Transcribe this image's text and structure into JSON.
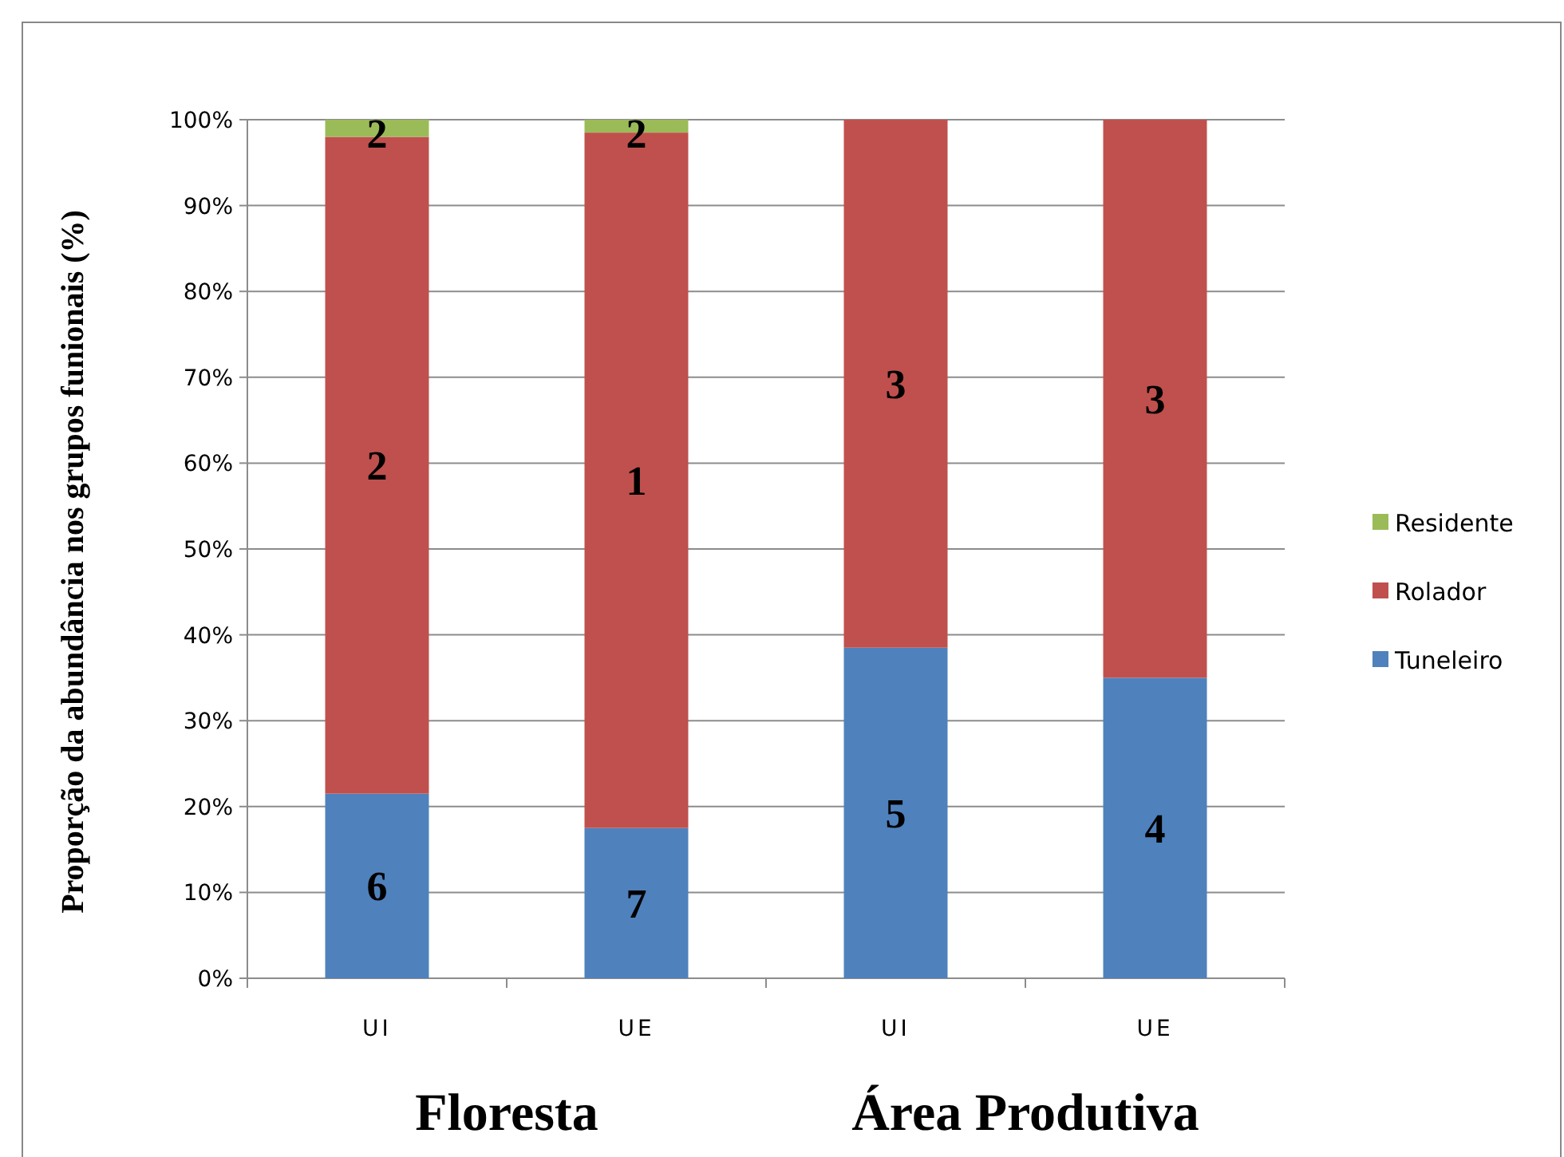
{
  "chart_data": {
    "type": "bar",
    "stacked": true,
    "ylabel": "Proporção da abundância nos grupos funionais (%)",
    "categories": [
      "UI",
      "UE",
      "UI",
      "UE"
    ],
    "series": [
      {
        "name": "Tuneleiro",
        "color": "#4f81bd",
        "values": [
          21.5,
          17.5,
          38.5,
          35
        ]
      },
      {
        "name": "Rolador",
        "color": "#c0504d",
        "values": [
          76.5,
          81,
          61.5,
          65
        ]
      },
      {
        "name": "Residente",
        "color": "#9bbb59",
        "values": [
          2,
          1.5,
          0,
          0
        ]
      }
    ],
    "ylim": [
      0,
      100
    ],
    "yticks": [
      {
        "value": 0,
        "label": "0%"
      },
      {
        "value": 10,
        "label": "10%"
      },
      {
        "value": 20,
        "label": "20%"
      },
      {
        "value": 30,
        "label": "30%"
      },
      {
        "value": 40,
        "label": "40%"
      },
      {
        "value": 50,
        "label": "50%"
      },
      {
        "value": 60,
        "label": "60%"
      },
      {
        "value": 70,
        "label": "70%"
      },
      {
        "value": 80,
        "label": "80%"
      },
      {
        "value": 90,
        "label": "90%"
      },
      {
        "value": 100,
        "label": "100%"
      }
    ],
    "grid": "y",
    "legend": "right",
    "annotations": [
      "6",
      "2",
      "2",
      "7",
      "1",
      "2",
      "5",
      "3",
      "4",
      "3",
      "Floresta",
      "Área Produtiva"
    ]
  }
}
